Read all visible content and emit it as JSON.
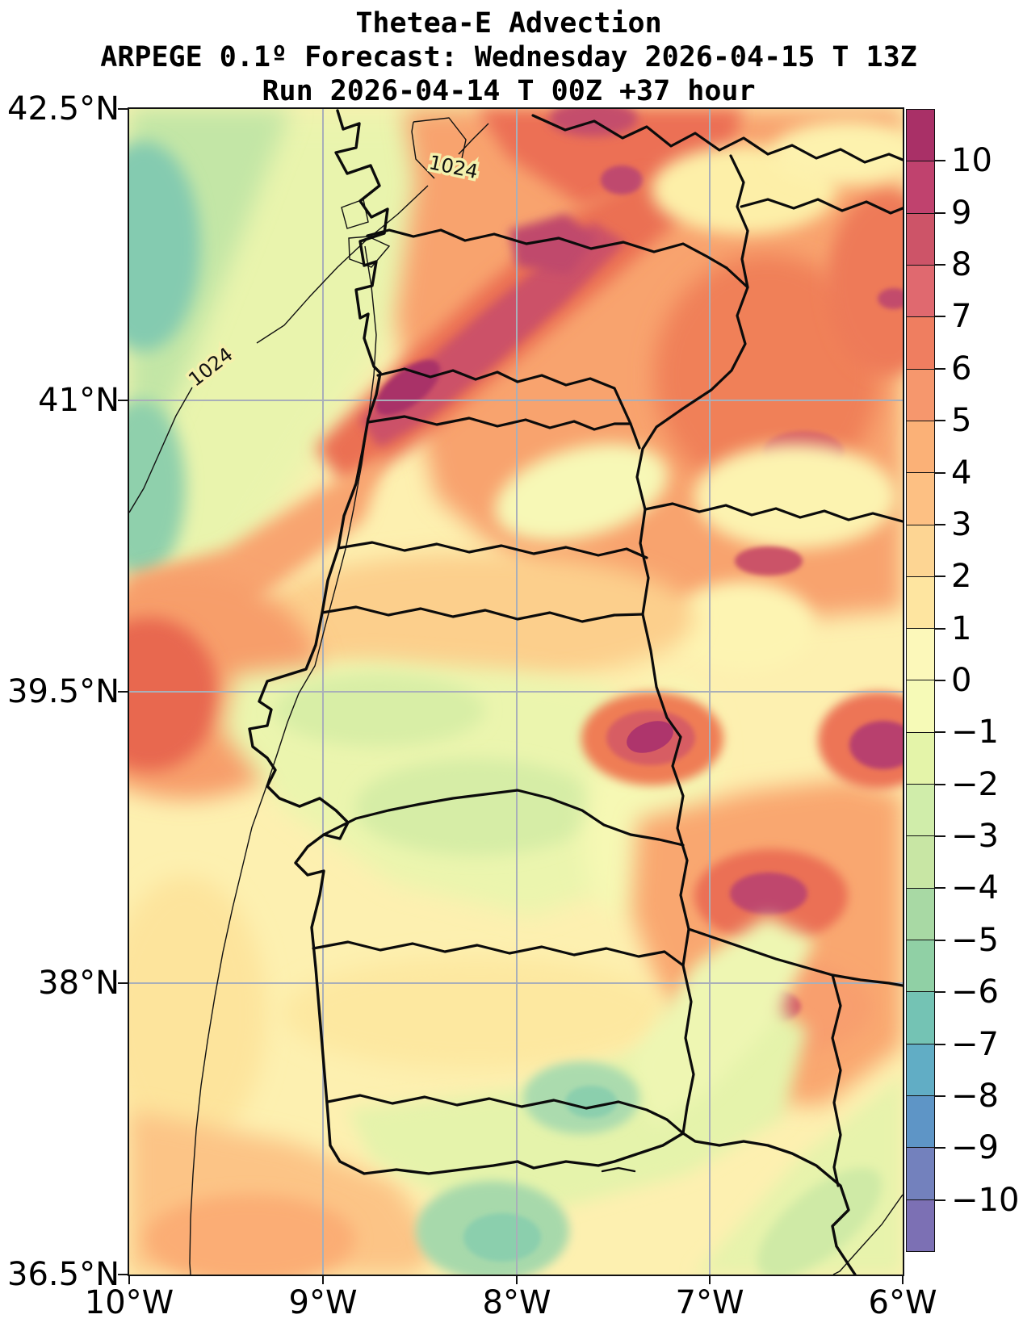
{
  "title": {
    "line1": "Thetea-E Advection",
    "line2": "ARPEGE 0.1º Forecast: Wednesday 2026-04-15 T 13Z",
    "line3": "Run 2026-04-14 T 00Z +37 hour"
  },
  "axes": {
    "y_ticks": [
      "42.5°N",
      "41°N",
      "39.5°N",
      "38°N",
      "36.5°N"
    ],
    "x_ticks": [
      "10°W",
      "9°W",
      "8°W",
      "7°W",
      "6°W"
    ]
  },
  "map": {
    "isobar_labels": [
      "1024",
      "1024"
    ]
  },
  "colorbar": {
    "tick_labels": [
      "10",
      "9",
      "8",
      "7",
      "6",
      "5",
      "4",
      "3",
      "2",
      "1",
      "0",
      "−1",
      "−2",
      "−3",
      "−4",
      "−5",
      "−6",
      "−7",
      "−8",
      "−9",
      "−10"
    ],
    "colors_top_to_bottom": [
      "#a93067",
      "#c0426e",
      "#cd5468",
      "#e0696f",
      "#ef7e60",
      "#f6976d",
      "#fbb177",
      "#fdc083",
      "#fdd593",
      "#fee5a0",
      "#fcf8ba",
      "#f6fab7",
      "#e4f4a9",
      "#d0edaa",
      "#c8e6a4",
      "#a8d9a4",
      "#90d0a5",
      "#74c3b4",
      "#61adc5",
      "#5e95c6",
      "#7381bd",
      "#7c70b4"
    ]
  },
  "chart_data": {
    "type": "heatmap",
    "title": "Thetea-E Advection",
    "subtitle": "ARPEGE 0.1º Forecast: Wednesday 2026-04-15 T 13Z — Run 2026-04-14 T 00Z +37 hour",
    "x_range_deg_lon": [
      -10,
      -6
    ],
    "y_range_deg_lat": [
      36.5,
      42.5
    ],
    "x_tick_labels": [
      "10°W",
      "9°W",
      "8°W",
      "7°W",
      "6°W"
    ],
    "y_tick_labels": [
      "42.5°N",
      "41°N",
      "39.5°N",
      "38°N",
      "36.5°N"
    ],
    "colorbar_range": [
      -10,
      10
    ],
    "colorbar_tick_step": 1,
    "isobar_contour_value": "1024",
    "legend_position": "right-colorbar",
    "grid": true
  }
}
